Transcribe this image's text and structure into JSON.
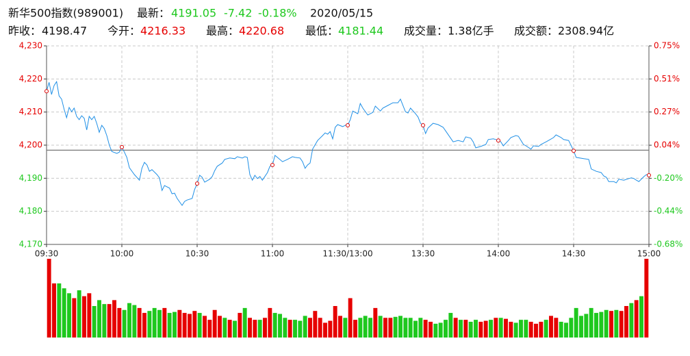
{
  "header": {
    "name": "新华500指数(989001)",
    "latest_label": "最新：",
    "latest": 4191.05,
    "change": -7.42,
    "change_pct": "-0.18%",
    "date": "2020/05/15",
    "items": [
      {
        "label": "昨收：",
        "value": 4198.47
      },
      {
        "label": "今开：",
        "value": 4216.33
      },
      {
        "label": "最高：",
        "value": 4220.68
      },
      {
        "label": "最低：",
        "value": 4181.44
      },
      {
        "label": "成交量：",
        "value": "1.38亿手"
      },
      {
        "label": "成交额：",
        "value": "2308.94亿"
      }
    ]
  },
  "chart_data": {
    "type": "line",
    "color": "#1e8fe6",
    "up_color": "#e60000",
    "down_color": "#1ec81e",
    "x": [
      0,
      1,
      2,
      3,
      4,
      5,
      6,
      7,
      8,
      9,
      10,
      11,
      12,
      13,
      14,
      15,
      16,
      17,
      18,
      19,
      20,
      21,
      22,
      23,
      24,
      25,
      26,
      28,
      29,
      30,
      31,
      32,
      33,
      35,
      37,
      38,
      39,
      40,
      41,
      42,
      44,
      45,
      46,
      47,
      49,
      50,
      51,
      52,
      54,
      55,
      56,
      58,
      59,
      60,
      61,
      62,
      63,
      65,
      66,
      67,
      68,
      70,
      71,
      73,
      75,
      76,
      78,
      79,
      80,
      81,
      82,
      83,
      84,
      85,
      86,
      88,
      89,
      90,
      91,
      92,
      94,
      96,
      98,
      99,
      101,
      102,
      103,
      104,
      105,
      106,
      108,
      110,
      111,
      112,
      113,
      114,
      115,
      116,
      118,
      119,
      120,
      121,
      122,
      124,
      125,
      126,
      128,
      130,
      131,
      133,
      134,
      136,
      138,
      140,
      141,
      143,
      144,
      145,
      147,
      148,
      149,
      150,
      151,
      152,
      154,
      156,
      158,
      159,
      161,
      162,
      164,
      166,
      167,
      169,
      170,
      171,
      173,
      175,
      176,
      178,
      179,
      180,
      181,
      182,
      184,
      185,
      187,
      188,
      190,
      191,
      193,
      194,
      196,
      197,
      199,
      200,
      202,
      203,
      205,
      206,
      208,
      210,
      211,
      214,
      216,
      217,
      219,
      221,
      222,
      223,
      224,
      226,
      227,
      228,
      230,
      232,
      233,
      234,
      235,
      236,
      238,
      239,
      240
    ],
    "values": [
      4216.3,
      4219.0,
      4215.3,
      4218.0,
      4219.2,
      4214.9,
      4213.9,
      4210.8,
      4208.3,
      4211.4,
      4210.1,
      4211.2,
      4208.7,
      4207.7,
      4208.9,
      4208.1,
      4204.6,
      4208.7,
      4207.7,
      4208.7,
      4206.6,
      4203.9,
      4206.0,
      4205.0,
      4202.9,
      4200.0,
      4198.1,
      4197.5,
      4197.9,
      4199.4,
      4197.9,
      4196.3,
      4193.2,
      4191.1,
      4189.4,
      4193.0,
      4194.8,
      4194.0,
      4192.1,
      4192.6,
      4191.1,
      4190.1,
      4186.3,
      4187.8,
      4187.0,
      4185.3,
      4185.5,
      4183.9,
      4181.8,
      4183.0,
      4183.4,
      4183.9,
      4186.6,
      4188.4,
      4190.9,
      4190.3,
      4188.8,
      4189.7,
      4190.5,
      4192.3,
      4193.6,
      4194.6,
      4195.7,
      4196.1,
      4195.9,
      4196.5,
      4196.1,
      4196.5,
      4196.3,
      4191.1,
      4189.4,
      4190.9,
      4189.9,
      4190.5,
      4189.4,
      4191.7,
      4193.6,
      4194.0,
      4196.9,
      4196.3,
      4195.0,
      4195.7,
      4196.5,
      4196.3,
      4196.1,
      4195.0,
      4193.0,
      4194.0,
      4194.6,
      4198.8,
      4201.4,
      4202.9,
      4203.7,
      4203.3,
      4204.1,
      4201.9,
      4205.4,
      4206.2,
      4205.6,
      4206.0,
      4206.0,
      4207.7,
      4210.3,
      4209.5,
      4212.6,
      4211.2,
      4209.1,
      4209.9,
      4211.8,
      4210.3,
      4211.2,
      4212.0,
      4212.8,
      4212.8,
      4213.9,
      4210.1,
      4209.7,
      4211.2,
      4209.5,
      4208.5,
      4206.6,
      4206.0,
      4203.5,
      4205.2,
      4206.6,
      4206.2,
      4205.4,
      4204.3,
      4202.1,
      4201.0,
      4201.4,
      4201.0,
      4202.5,
      4202.1,
      4201.0,
      4199.2,
      4199.6,
      4200.2,
      4201.7,
      4201.9,
      4201.7,
      4201.4,
      4201.0,
      4199.8,
      4201.4,
      4202.3,
      4202.9,
      4202.7,
      4200.2,
      4199.8,
      4198.8,
      4199.8,
      4199.6,
      4200.2,
      4201.0,
      4201.4,
      4202.3,
      4203.1,
      4202.3,
      4201.7,
      4201.4,
      4198.3,
      4196.3,
      4195.9,
      4195.7,
      4192.8,
      4192.1,
      4191.7,
      4190.7,
      4190.3,
      4189.0,
      4189.0,
      4188.6,
      4189.7,
      4189.4,
      4189.9,
      4190.1,
      4189.9,
      4189.4,
      4189.0,
      4190.5,
      4191.1,
      4190.9
    ],
    "xlim": [
      0,
      240
    ],
    "xticks": [
      {
        "value": 0,
        "label": "09:30"
      },
      {
        "value": 30,
        "label": "10:00"
      },
      {
        "value": 60,
        "label": "10:30"
      },
      {
        "value": 90,
        "label": "11:00"
      },
      {
        "value": 120,
        "label": "11:30/13:00"
      },
      {
        "value": 150,
        "label": "13:30"
      },
      {
        "value": 180,
        "label": "14:00"
      },
      {
        "value": 210,
        "label": "14:30"
      },
      {
        "value": 240,
        "label": "15:00"
      }
    ],
    "ylim": [
      4170,
      4230
    ],
    "yticks": [
      {
        "value": 4170,
        "label": "4,170"
      },
      {
        "value": 4180,
        "label": "4,180"
      },
      {
        "value": 4190,
        "label": "4,190"
      },
      {
        "value": 4200,
        "label": "4,200"
      },
      {
        "value": 4210,
        "label": "4,210"
      },
      {
        "value": 4220,
        "label": "4,220"
      },
      {
        "value": 4230,
        "label": "4,230"
      }
    ],
    "y2lim": [
      -0.678,
      0.751
    ],
    "y2ticks": [
      {
        "value": -0.678,
        "label": "-0.68%"
      },
      {
        "value": -0.44,
        "label": "-0.44%"
      },
      {
        "value": -0.202,
        "label": "-0.20%"
      },
      {
        "value": 0.036,
        "label": "0.04%"
      },
      {
        "value": 0.275,
        "label": "0.27%"
      },
      {
        "value": 0.513,
        "label": "0.51%"
      },
      {
        "value": 0.751,
        "label": "0.75%"
      }
    ],
    "grid": true,
    "volume": {
      "values": [
        80,
        55,
        55,
        50,
        45,
        40,
        48,
        42,
        45,
        32,
        38,
        34,
        34,
        38,
        30,
        28,
        35,
        33,
        30,
        25,
        27,
        30,
        28,
        30,
        25,
        26,
        28,
        25,
        24,
        27,
        25,
        22,
        18,
        28,
        22,
        20,
        18,
        17,
        25,
        30,
        20,
        18,
        18,
        20,
        30,
        25,
        24,
        20,
        18,
        18,
        17,
        22,
        20,
        27,
        20,
        15,
        17,
        32,
        22,
        20,
        40,
        18,
        20,
        22,
        20,
        30,
        22,
        20,
        20,
        21,
        22,
        20,
        20,
        17,
        20,
        18,
        16,
        14,
        15,
        18,
        25,
        20,
        18,
        18,
        16,
        18,
        16,
        17,
        18,
        20,
        20,
        19,
        16,
        15,
        18,
        18,
        16,
        14,
        16,
        18,
        22,
        20,
        16,
        15,
        20,
        30,
        22,
        24,
        30,
        25,
        26,
        28,
        27,
        28,
        27,
        32,
        35,
        38,
        42,
        80
      ],
      "colors": [
        "#e60000",
        "#e60000",
        "#1ec81e",
        "#1ec81e",
        "#1ec81e",
        "#e60000",
        "#1ec81e",
        "#e60000",
        "#e60000",
        "#1ec81e",
        "#1ec81e",
        "#1ec81e",
        "#e60000",
        "#e60000",
        "#e60000",
        "#1ec81e",
        "#1ec81e",
        "#1ec81e",
        "#e60000",
        "#e60000",
        "#1ec81e",
        "#1ec81e",
        "#1ec81e",
        "#e60000",
        "#1ec81e",
        "#1ec81e",
        "#e60000",
        "#e60000",
        "#e60000",
        "#e60000",
        "#1ec81e",
        "#e60000",
        "#e60000",
        "#e60000",
        "#e60000",
        "#1ec81e",
        "#e60000",
        "#1ec81e",
        "#e60000",
        "#1ec81e",
        "#e60000",
        "#e60000",
        "#1ec81e",
        "#e60000",
        "#e60000",
        "#1ec81e",
        "#1ec81e",
        "#1ec81e",
        "#e60000",
        "#1ec81e",
        "#1ec81e",
        "#1ec81e",
        "#e60000",
        "#e60000",
        "#e60000",
        "#e60000",
        "#e60000",
        "#e60000",
        "#e60000",
        "#1ec81e",
        "#e60000",
        "#e60000",
        "#1ec81e",
        "#1ec81e",
        "#1ec81e",
        "#e60000",
        "#1ec81e",
        "#e60000",
        "#e60000",
        "#1ec81e",
        "#1ec81e",
        "#1ec81e",
        "#1ec81e",
        "#1ec81e",
        "#1ec81e",
        "#e60000",
        "#e60000",
        "#1ec81e",
        "#1ec81e",
        "#1ec81e",
        "#1ec81e",
        "#e60000",
        "#1ec81e",
        "#e60000",
        "#1ec81e",
        "#1ec81e",
        "#e60000",
        "#e60000",
        "#1ec81e",
        "#e60000",
        "#1ec81e",
        "#e60000",
        "#e60000",
        "#1ec81e",
        "#1ec81e",
        "#1ec81e",
        "#e60000",
        "#e60000",
        "#e60000",
        "#1ec81e",
        "#e60000",
        "#e60000",
        "#1ec81e",
        "#1ec81e",
        "#1ec81e",
        "#1ec81e",
        "#1ec81e",
        "#1ec81e",
        "#1ec81e",
        "#1ec81e",
        "#1ec81e",
        "#1ec81e",
        "#e60000",
        "#1ec81e",
        "#e60000",
        "#e60000",
        "#1ec81e",
        "#e60000",
        "#1ec81e",
        "#e60000"
      ]
    }
  }
}
